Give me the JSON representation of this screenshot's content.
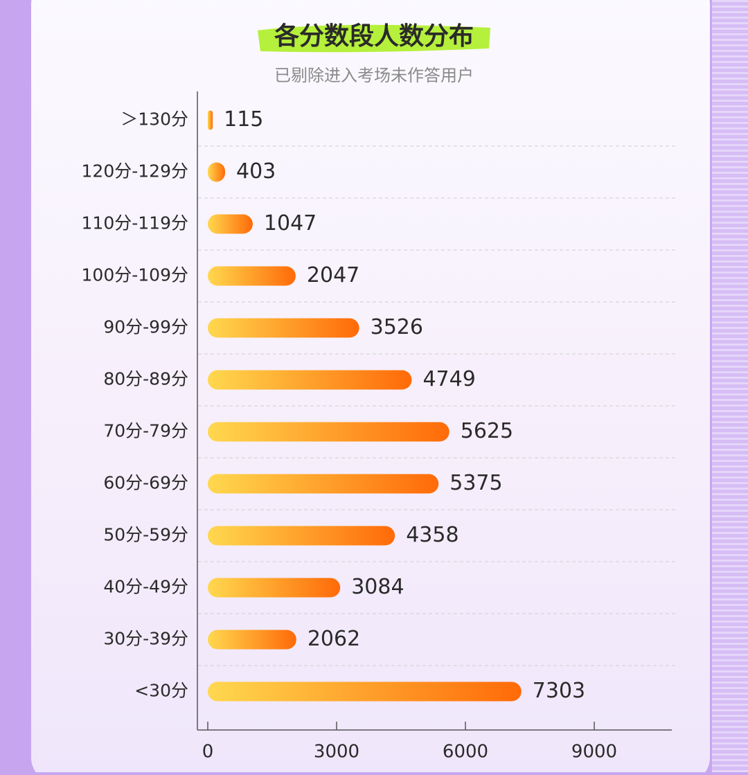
{
  "chart_data": {
    "type": "bar",
    "orientation": "horizontal",
    "title": "各分数段人数分布",
    "subtitle": "已剔除进入考场未作答用户",
    "categories": [
      "＞130分",
      "120分-129分",
      "110分-119分",
      "100分-109分",
      "90分-99分",
      "80分-89分",
      "70分-79分",
      "60分-69分",
      "50分-59分",
      "40分-49分",
      "30分-39分",
      "<30分"
    ],
    "values": [
      115,
      403,
      1047,
      2047,
      3526,
      4749,
      5625,
      5375,
      4358,
      3084,
      2062,
      7303
    ],
    "colors": [
      "#ffd84f",
      "#ff6a08"
    ],
    "xlim": [
      0,
      11000
    ],
    "xticks": [
      0,
      3000,
      6000,
      9000
    ],
    "grid": true
  }
}
